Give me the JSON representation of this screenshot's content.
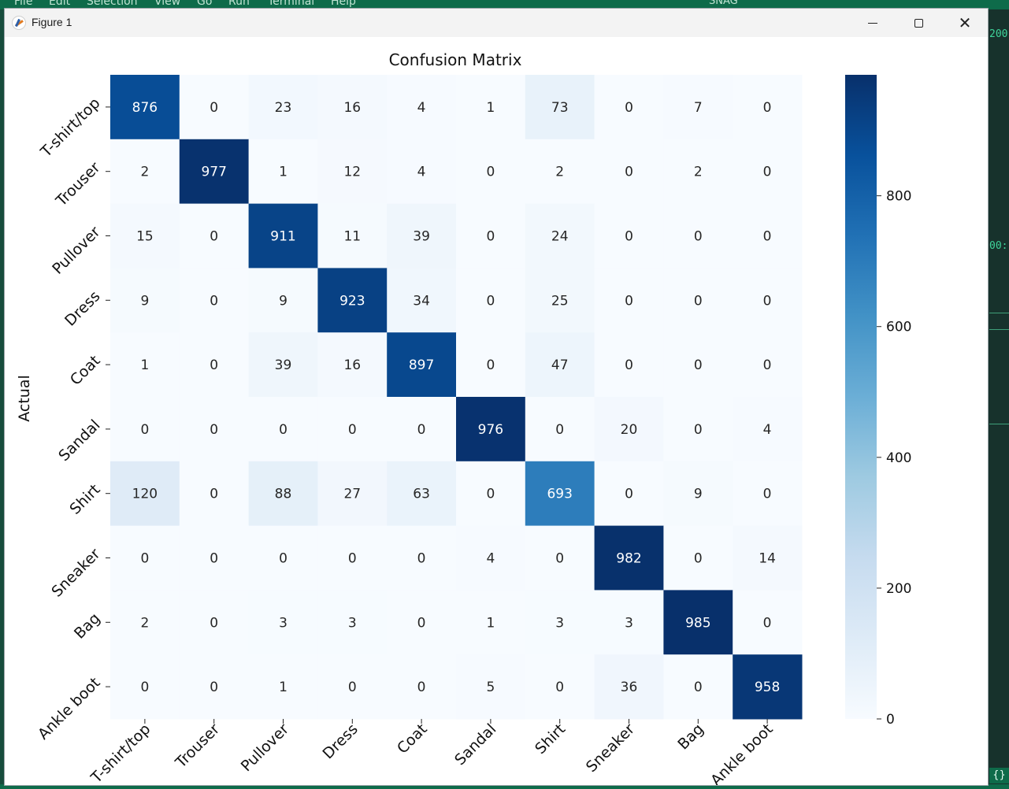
{
  "background": {
    "menu": [
      "File",
      "Edit",
      "Selection",
      "View",
      "Go",
      "Run",
      "Terminal",
      "Help"
    ],
    "search": "SNAG",
    "code_snippets": [
      "200",
      "00:"
    ],
    "status_glyph": "{}"
  },
  "window": {
    "title": "Figure 1",
    "controls": {
      "minimize": "minimize",
      "maximize": "maximize",
      "close": "close"
    }
  },
  "colors": {
    "low": "#f7fbff",
    "high": "#08306b",
    "text_dark": "#262626",
    "text_light": "#ffffff"
  },
  "chart_data": {
    "type": "heatmap",
    "title": "Confusion Matrix",
    "ylabel": "Actual",
    "xlabel": "",
    "labels": [
      "T-shirt/top",
      "Trouser",
      "Pullover",
      "Dress",
      "Coat",
      "Sandal",
      "Shirt",
      "Sneaker",
      "Bag",
      "Ankle boot"
    ],
    "matrix": [
      [
        876,
        0,
        23,
        16,
        4,
        1,
        73,
        0,
        7,
        0
      ],
      [
        2,
        977,
        1,
        12,
        4,
        0,
        2,
        0,
        2,
        0
      ],
      [
        15,
        0,
        911,
        11,
        39,
        0,
        24,
        0,
        0,
        0
      ],
      [
        9,
        0,
        9,
        923,
        34,
        0,
        25,
        0,
        0,
        0
      ],
      [
        1,
        0,
        39,
        16,
        897,
        0,
        47,
        0,
        0,
        0
      ],
      [
        0,
        0,
        0,
        0,
        0,
        976,
        0,
        20,
        0,
        4
      ],
      [
        120,
        0,
        88,
        27,
        63,
        0,
        693,
        0,
        9,
        0
      ],
      [
        0,
        0,
        0,
        0,
        0,
        4,
        0,
        982,
        0,
        14
      ],
      [
        2,
        0,
        3,
        3,
        0,
        1,
        3,
        3,
        985,
        0
      ],
      [
        0,
        0,
        1,
        0,
        0,
        5,
        0,
        36,
        0,
        958
      ]
    ],
    "vmin": 0,
    "vmax": 985,
    "colormap": "Blues",
    "colorbar_ticks": [
      0,
      200,
      400,
      600,
      800
    ]
  }
}
